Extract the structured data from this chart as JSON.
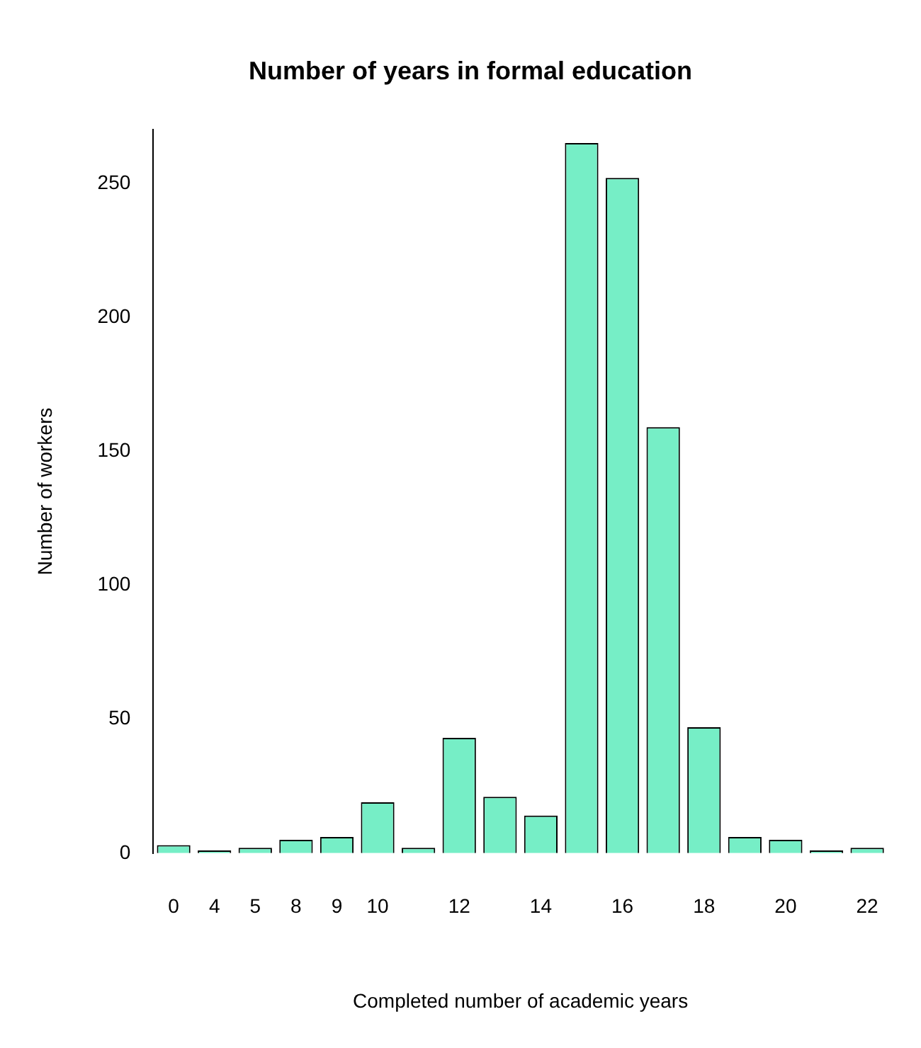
{
  "chart_data": {
    "type": "bar",
    "title": "Number of years in formal education",
    "xlabel": "Completed number of academic years",
    "ylabel": "Number of workers",
    "categories": [
      "0",
      "4",
      "5",
      "8",
      "9",
      "10",
      null,
      "12",
      null,
      "14",
      null,
      "16",
      null,
      "18",
      null,
      "20",
      null,
      "22"
    ],
    "values": [
      3,
      1,
      2,
      5,
      6,
      19,
      2,
      43,
      21,
      14,
      265,
      252,
      159,
      47,
      6,
      5,
      1,
      2
    ],
    "color": "#76eec6",
    "ylim": [
      0,
      270
    ],
    "yticks": [
      0,
      50,
      100,
      150,
      200,
      250
    ],
    "grid": false,
    "legend": false
  }
}
